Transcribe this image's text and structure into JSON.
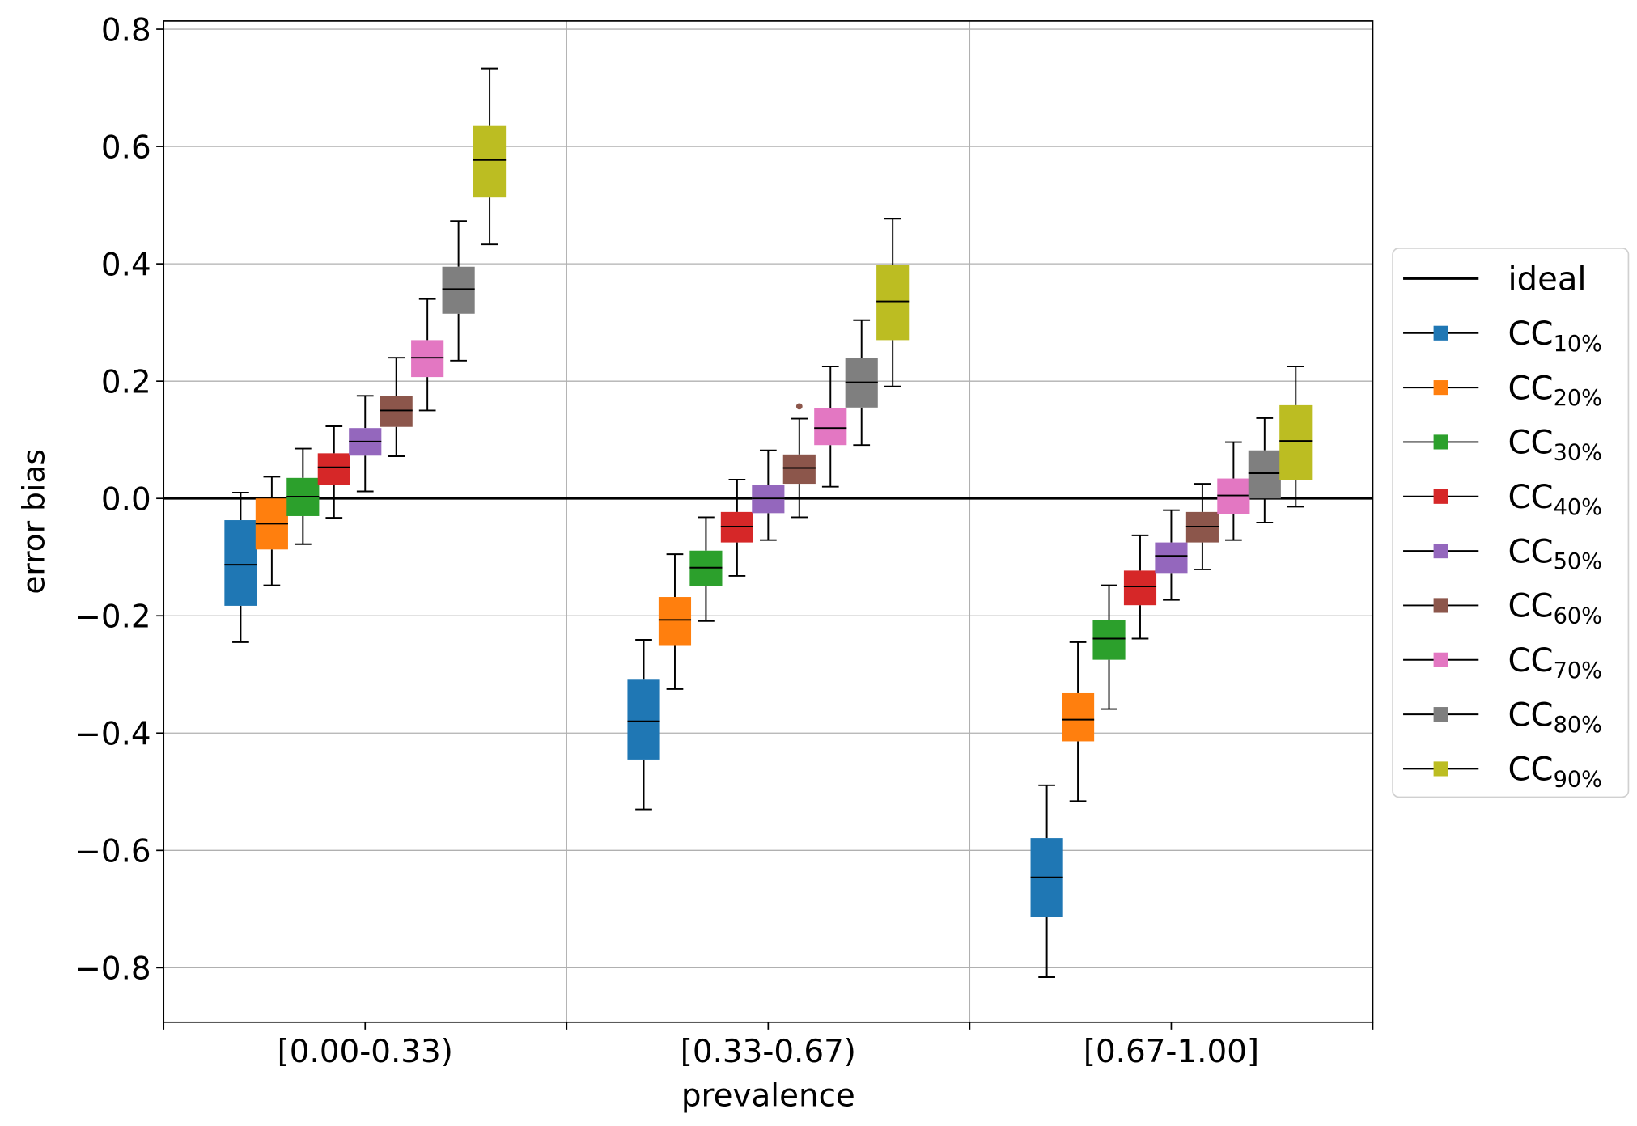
{
  "chart_data": {
    "type": "box",
    "xlabel": "prevalence",
    "ylabel": "error bias",
    "ylim": [
      -0.893,
      0.814
    ],
    "yticks": [
      0.8,
      0.6,
      0.4,
      0.2,
      0.0,
      -0.2,
      -0.4,
      -0.6,
      -0.8
    ],
    "ytick_labels": [
      "0.8",
      "0.6",
      "0.4",
      "0.2",
      "0.0",
      "−0.2",
      "−0.4",
      "−0.6",
      "−0.8"
    ],
    "categories": [
      "[0.00-0.33)",
      "[0.33-0.67)",
      "[0.67-1.00]"
    ],
    "grid": true,
    "reference_line": {
      "name": "ideal",
      "y": 0.0,
      "color": "#000000"
    },
    "legend": {
      "placement": "right-outside"
    },
    "series": [
      {
        "name": "CC",
        "sub": "10%",
        "color": "#1f77b4",
        "boxes": [
          {
            "whislo": -0.245,
            "q1": -0.183,
            "med": -0.113,
            "q3": -0.037,
            "whishi": 0.01
          },
          {
            "whislo": -0.53,
            "q1": -0.445,
            "med": -0.38,
            "q3": -0.309,
            "whishi": -0.241
          },
          {
            "whislo": -0.816,
            "q1": -0.714,
            "med": -0.646,
            "q3": -0.579,
            "whishi": -0.489
          }
        ]
      },
      {
        "name": "CC",
        "sub": "20%",
        "color": "#ff7f0e",
        "boxes": [
          {
            "whislo": -0.148,
            "q1": -0.087,
            "med": -0.043,
            "q3": 0.0,
            "whishi": 0.037
          },
          {
            "whislo": -0.325,
            "q1": -0.25,
            "med": -0.207,
            "q3": -0.168,
            "whishi": -0.095
          },
          {
            "whislo": -0.516,
            "q1": -0.414,
            "med": -0.377,
            "q3": -0.332,
            "whishi": -0.245
          }
        ]
      },
      {
        "name": "CC",
        "sub": "30%",
        "color": "#2ca02c",
        "boxes": [
          {
            "whislo": -0.078,
            "q1": -0.03,
            "med": 0.003,
            "q3": 0.035,
            "whishi": 0.085
          },
          {
            "whislo": -0.209,
            "q1": -0.15,
            "med": -0.118,
            "q3": -0.089,
            "whishi": -0.032
          },
          {
            "whislo": -0.359,
            "q1": -0.275,
            "med": -0.239,
            "q3": -0.207,
            "whishi": -0.148
          }
        ]
      },
      {
        "name": "CC",
        "sub": "40%",
        "color": "#d62728",
        "boxes": [
          {
            "whislo": -0.033,
            "q1": 0.023,
            "med": 0.053,
            "q3": 0.077,
            "whishi": 0.123
          },
          {
            "whislo": -0.132,
            "q1": -0.075,
            "med": -0.048,
            "q3": -0.023,
            "whishi": 0.032
          },
          {
            "whislo": -0.239,
            "q1": -0.182,
            "med": -0.15,
            "q3": -0.123,
            "whishi": -0.063
          }
        ]
      },
      {
        "name": "CC",
        "sub": "50%",
        "color": "#9467bd",
        "boxes": [
          {
            "whislo": 0.012,
            "q1": 0.073,
            "med": 0.097,
            "q3": 0.12,
            "whishi": 0.175
          },
          {
            "whislo": -0.071,
            "q1": -0.025,
            "med": 0.0,
            "q3": 0.023,
            "whishi": 0.082
          },
          {
            "whislo": -0.173,
            "q1": -0.127,
            "med": -0.098,
            "q3": -0.075,
            "whishi": -0.02
          }
        ]
      },
      {
        "name": "CC",
        "sub": "60%",
        "color": "#8c564b",
        "boxes": [
          {
            "whislo": 0.072,
            "q1": 0.122,
            "med": 0.15,
            "q3": 0.175,
            "whishi": 0.24
          },
          {
            "whislo": -0.032,
            "q1": 0.025,
            "med": 0.052,
            "q3": 0.075,
            "whishi": 0.136,
            "fliers": [
              0.157
            ]
          },
          {
            "whislo": -0.121,
            "q1": -0.075,
            "med": -0.048,
            "q3": -0.023,
            "whishi": 0.025
          }
        ]
      },
      {
        "name": "CC",
        "sub": "70%",
        "color": "#e377c2",
        "boxes": [
          {
            "whislo": 0.15,
            "q1": 0.207,
            "med": 0.24,
            "q3": 0.27,
            "whishi": 0.34
          },
          {
            "whislo": 0.02,
            "q1": 0.091,
            "med": 0.12,
            "q3": 0.154,
            "whishi": 0.225
          },
          {
            "whislo": -0.071,
            "q1": -0.027,
            "med": 0.005,
            "q3": 0.034,
            "whishi": 0.096
          }
        ]
      },
      {
        "name": "CC",
        "sub": "80%",
        "color": "#7f7f7f",
        "boxes": [
          {
            "whislo": 0.235,
            "q1": 0.315,
            "med": 0.357,
            "q3": 0.395,
            "whishi": 0.473
          },
          {
            "whislo": 0.091,
            "q1": 0.155,
            "med": 0.198,
            "q3": 0.239,
            "whishi": 0.304
          },
          {
            "whislo": -0.041,
            "q1": 0.0,
            "med": 0.043,
            "q3": 0.082,
            "whishi": 0.137
          }
        ]
      },
      {
        "name": "CC",
        "sub": "90%",
        "color": "#bcbd22",
        "boxes": [
          {
            "whislo": 0.433,
            "q1": 0.513,
            "med": 0.577,
            "q3": 0.635,
            "whishi": 0.733
          },
          {
            "whislo": 0.191,
            "q1": 0.27,
            "med": 0.336,
            "q3": 0.398,
            "whishi": 0.477
          },
          {
            "whislo": -0.014,
            "q1": 0.032,
            "med": 0.098,
            "q3": 0.159,
            "whishi": 0.225
          }
        ]
      }
    ]
  }
}
